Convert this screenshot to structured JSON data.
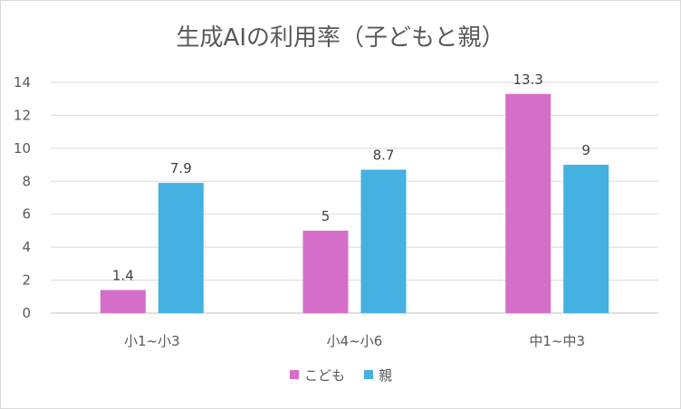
{
  "chart_data": {
    "type": "bar",
    "title": "生成AIの利用率（子どもと親）",
    "categories": [
      "小1~小3",
      "小4~小6",
      "中1~中3"
    ],
    "series": [
      {
        "name": "こども",
        "values": [
          1.4,
          5,
          13.3
        ],
        "labels": [
          "1.4",
          "5",
          "13.3"
        ],
        "color": "#d56ec9"
      },
      {
        "name": "親",
        "values": [
          7.9,
          8.7,
          9
        ],
        "labels": [
          "7.9",
          "8.7",
          "9"
        ],
        "color": "#45b1e0"
      }
    ],
    "ylim": [
      0,
      14
    ],
    "yticks": [
      0,
      2,
      4,
      6,
      8,
      10,
      12,
      14
    ],
    "grid": true,
    "legend": "bottom",
    "xlabel": "",
    "ylabel": ""
  }
}
